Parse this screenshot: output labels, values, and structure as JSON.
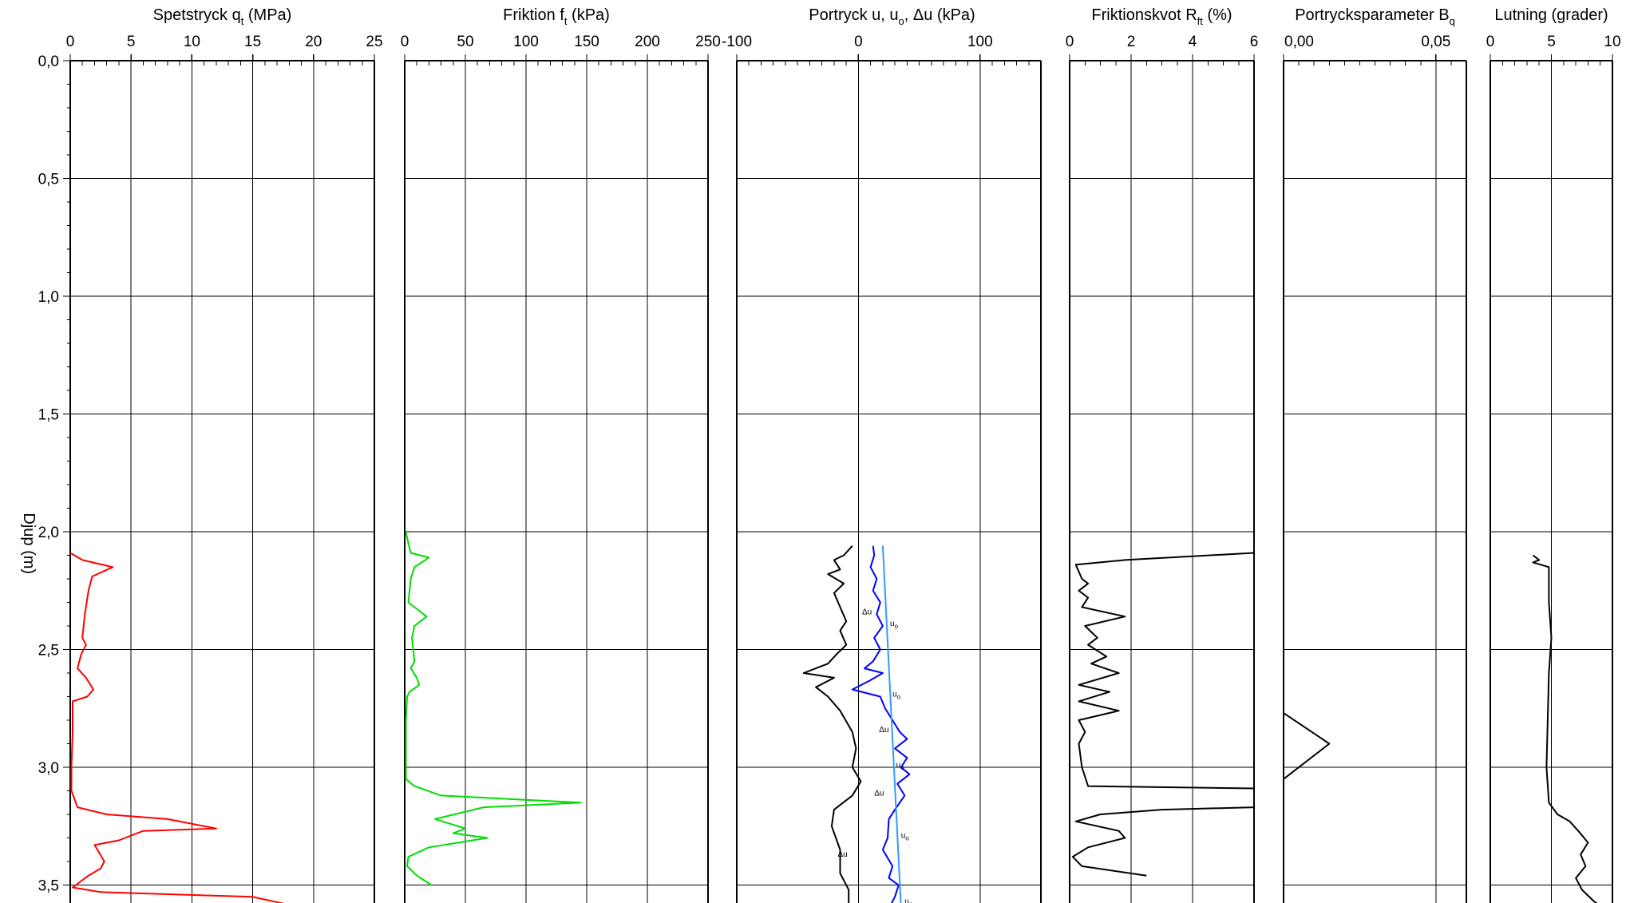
{
  "chart_data": {
    "type": "line",
    "y_axis": {
      "label": "Djup  (m)",
      "ticks": [
        "0,0",
        "0,5",
        "1,0",
        "1,5",
        "2,0",
        "2,5",
        "3,0",
        "3,5"
      ],
      "range": [
        0,
        3.6
      ],
      "inverted": true
    },
    "grid": true,
    "panels": [
      {
        "title": "Spetstryck q",
        "title_sub": "t",
        "title_tail": "  (MPa)",
        "xlim": [
          0,
          25
        ],
        "ticks": [
          0,
          5,
          10,
          15,
          20,
          25
        ],
        "tick_labels": [
          "0",
          "5",
          "10",
          "15",
          "20",
          "25"
        ],
        "minor_step": 1,
        "series": [
          {
            "color": "#ff0000",
            "points": [
              [
                0.0,
                2.09
              ],
              [
                1.0,
                2.12
              ],
              [
                3.5,
                2.15
              ],
              [
                1.8,
                2.19
              ],
              [
                1.5,
                2.25
              ],
              [
                1.2,
                2.35
              ],
              [
                1.0,
                2.45
              ],
              [
                1.3,
                2.48
              ],
              [
                0.9,
                2.52
              ],
              [
                0.6,
                2.58
              ],
              [
                1.3,
                2.62
              ],
              [
                1.9,
                2.67
              ],
              [
                1.4,
                2.7
              ],
              [
                0.2,
                2.72
              ],
              [
                0.2,
                2.85
              ],
              [
                0.1,
                3.0
              ],
              [
                0.1,
                3.1
              ],
              [
                0.6,
                3.17
              ],
              [
                3.0,
                3.2
              ],
              [
                8.0,
                3.22
              ],
              [
                12.0,
                3.26
              ],
              [
                6.0,
                3.27
              ],
              [
                4.0,
                3.31
              ],
              [
                2.0,
                3.33
              ],
              [
                2.8,
                3.4
              ],
              [
                2.5,
                3.43
              ],
              [
                1.5,
                3.46
              ],
              [
                0.2,
                3.51
              ],
              [
                2.5,
                3.53
              ],
              [
                15.0,
                3.55
              ],
              [
                18.5,
                3.59
              ]
            ]
          }
        ]
      },
      {
        "title": "Friktion f",
        "title_sub": "t",
        "title_tail": "  (kPa)",
        "xlim": [
          0,
          250
        ],
        "ticks": [
          0,
          50,
          100,
          150,
          200,
          250
        ],
        "tick_labels": [
          "0",
          "50",
          "100",
          "150",
          "200",
          "250"
        ],
        "minor_step": 10,
        "series": [
          {
            "color": "#00dd00",
            "points": [
              [
                1,
                2.0
              ],
              [
                3,
                2.05
              ],
              [
                5,
                2.09
              ],
              [
                20,
                2.11
              ],
              [
                8,
                2.15
              ],
              [
                5,
                2.2
              ],
              [
                3,
                2.3
              ],
              [
                18,
                2.36
              ],
              [
                8,
                2.4
              ],
              [
                6,
                2.45
              ],
              [
                8,
                2.55
              ],
              [
                5,
                2.58
              ],
              [
                10,
                2.62
              ],
              [
                12,
                2.65
              ],
              [
                4,
                2.68
              ],
              [
                2,
                2.7
              ],
              [
                1,
                2.8
              ],
              [
                1,
                3.05
              ],
              [
                8,
                3.08
              ],
              [
                30,
                3.12
              ],
              [
                145,
                3.15
              ],
              [
                65,
                3.17
              ],
              [
                25,
                3.22
              ],
              [
                50,
                3.26
              ],
              [
                40,
                3.28
              ],
              [
                68,
                3.3
              ],
              [
                20,
                3.34
              ],
              [
                3,
                3.38
              ],
              [
                2,
                3.42
              ],
              [
                10,
                3.46
              ],
              [
                22,
                3.5
              ]
            ]
          }
        ]
      },
      {
        "title": "Portryck u, u",
        "title_sub": "o",
        "title_tail": ", Δu  (kPa)",
        "xlim": [
          -100,
          150
        ],
        "ticks": [
          -100,
          0,
          100
        ],
        "tick_labels": [
          "-100",
          "0",
          "100"
        ],
        "minor_step": 10,
        "annotations": [
          {
            "text": "Δu",
            "x": 3,
            "y": 2.35
          },
          {
            "text": "Δu",
            "x": 17,
            "y": 2.85
          },
          {
            "text": "Δu",
            "x": 13,
            "y": 3.12
          },
          {
            "text": "Δu",
            "x": -17,
            "y": 3.38
          },
          {
            "text": "u",
            "sub": "o",
            "x": 26,
            "y": 2.4
          },
          {
            "text": "u",
            "sub": "o",
            "x": 28,
            "y": 2.7
          },
          {
            "text": "u",
            "sub": "o",
            "x": 31,
            "y": 3.0
          },
          {
            "text": "u",
            "sub": "o",
            "x": 35,
            "y": 3.3
          },
          {
            "text": "u",
            "sub": "o",
            "x": 38,
            "y": 3.58
          }
        ],
        "series": [
          {
            "name": "u",
            "color": "#0000ff",
            "points": [
              [
                12,
                2.06
              ],
              [
                13,
                2.1
              ],
              [
                10,
                2.15
              ],
              [
                15,
                2.2
              ],
              [
                12,
                2.25
              ],
              [
                18,
                2.3
              ],
              [
                15,
                2.35
              ],
              [
                20,
                2.4
              ],
              [
                13,
                2.45
              ],
              [
                18,
                2.5
              ],
              [
                12,
                2.55
              ],
              [
                5,
                2.58
              ],
              [
                20,
                2.6
              ],
              [
                10,
                2.63
              ],
              [
                -5,
                2.67
              ],
              [
                18,
                2.7
              ],
              [
                22,
                2.75
              ],
              [
                28,
                2.8
              ],
              [
                34,
                2.85
              ],
              [
                40,
                2.88
              ],
              [
                30,
                2.92
              ],
              [
                40,
                2.96
              ],
              [
                35,
                3.0
              ],
              [
                42,
                3.03
              ],
              [
                32,
                3.07
              ],
              [
                38,
                3.12
              ],
              [
                30,
                3.18
              ],
              [
                25,
                3.22
              ],
              [
                24,
                3.3
              ],
              [
                20,
                3.35
              ],
              [
                28,
                3.42
              ],
              [
                25,
                3.47
              ],
              [
                33,
                3.5
              ],
              [
                30,
                3.55
              ],
              [
                27,
                3.58
              ]
            ]
          },
          {
            "name": "u",
            "name_sub": "o",
            "color": "#3399ff",
            "points": [
              [
                20,
                2.06
              ],
              [
                35,
                3.59
              ]
            ]
          },
          {
            "name": "Δu",
            "color": "#000000",
            "points": [
              [
                -5,
                2.06
              ],
              [
                -12,
                2.1
              ],
              [
                -20,
                2.12
              ],
              [
                -15,
                2.16
              ],
              [
                -25,
                2.18
              ],
              [
                -12,
                2.22
              ],
              [
                -20,
                2.26
              ],
              [
                -15,
                2.32
              ],
              [
                -10,
                2.38
              ],
              [
                -15,
                2.42
              ],
              [
                -10,
                2.48
              ],
              [
                -18,
                2.52
              ],
              [
                -25,
                2.56
              ],
              [
                -45,
                2.6
              ],
              [
                -20,
                2.62
              ],
              [
                -35,
                2.66
              ],
              [
                -25,
                2.7
              ],
              [
                -15,
                2.76
              ],
              [
                -5,
                2.85
              ],
              [
                -2,
                2.92
              ],
              [
                -5,
                3.0
              ],
              [
                2,
                3.06
              ],
              [
                -5,
                3.12
              ],
              [
                -20,
                3.18
              ],
              [
                -22,
                3.25
              ],
              [
                -15,
                3.35
              ],
              [
                -15,
                3.45
              ],
              [
                -8,
                3.52
              ],
              [
                -8,
                3.58
              ]
            ]
          }
        ]
      },
      {
        "title": "Friktionskvot R",
        "title_sub": "ft",
        "title_tail": "  (%)",
        "xlim": [
          0,
          6
        ],
        "ticks": [
          0,
          2,
          4,
          6
        ],
        "tick_labels": [
          "0",
          "2",
          "4",
          "6"
        ],
        "minor_step": 0.5,
        "series": [
          {
            "color": "#000000",
            "points": [
              [
                6.0,
                2.09
              ],
              [
                1.8,
                2.12
              ],
              [
                0.2,
                2.14
              ],
              [
                0.4,
                2.2
              ],
              [
                0.6,
                2.22
              ],
              [
                0.3,
                2.25
              ],
              [
                0.6,
                2.28
              ],
              [
                0.4,
                2.32
              ],
              [
                1.8,
                2.36
              ],
              [
                0.5,
                2.4
              ],
              [
                0.9,
                2.45
              ],
              [
                0.6,
                2.48
              ],
              [
                1.2,
                2.53
              ],
              [
                0.7,
                2.56
              ],
              [
                1.6,
                2.6
              ],
              [
                0.3,
                2.65
              ],
              [
                1.3,
                2.68
              ],
              [
                0.3,
                2.72
              ],
              [
                1.6,
                2.76
              ],
              [
                0.3,
                2.8
              ],
              [
                0.5,
                2.85
              ],
              [
                0.3,
                2.9
              ],
              [
                0.4,
                3.0
              ],
              [
                0.6,
                3.08
              ],
              [
                6.0,
                3.09
              ],
              [
                6.0,
                3.17
              ],
              [
                3.0,
                3.18
              ],
              [
                1.0,
                3.2
              ],
              [
                0.2,
                3.23
              ],
              [
                1.6,
                3.27
              ],
              [
                1.8,
                3.3
              ],
              [
                0.6,
                3.34
              ],
              [
                0.1,
                3.38
              ],
              [
                0.4,
                3.42
              ],
              [
                2.5,
                3.46
              ]
            ]
          }
        ]
      },
      {
        "title": "Portrycksparameter B",
        "title_sub": "q",
        "title_tail": "",
        "xlim": [
          0,
          0.06
        ],
        "ticks": [
          0,
          0.05
        ],
        "tick_labels": [
          "0,00",
          "0,05"
        ],
        "minor_step": 0.005,
        "series": [
          {
            "color": "#000000",
            "points": [
              [
                0.0,
                2.77
              ],
              [
                0.015,
                2.9
              ],
              [
                0.0,
                3.05
              ]
            ]
          }
        ]
      },
      {
        "title": "Lutning (grader)",
        "title_sub": "",
        "title_tail": "",
        "xlim": [
          0,
          10
        ],
        "ticks": [
          0,
          5,
          10
        ],
        "tick_labels": [
          "0",
          "5",
          "10"
        ],
        "minor_step": 1,
        "series": [
          {
            "color": "#000000",
            "points": [
              [
                3.5,
                2.1
              ],
              [
                4.0,
                2.12
              ],
              [
                3.5,
                2.13
              ],
              [
                4.8,
                2.15
              ],
              [
                4.8,
                2.3
              ],
              [
                5.0,
                2.45
              ],
              [
                4.8,
                2.6
              ],
              [
                4.7,
                2.8
              ],
              [
                4.6,
                3.0
              ],
              [
                4.8,
                3.15
              ],
              [
                5.5,
                3.2
              ],
              [
                6.5,
                3.23
              ],
              [
                7.2,
                3.27
              ],
              [
                8.0,
                3.32
              ],
              [
                7.4,
                3.37
              ],
              [
                7.8,
                3.42
              ],
              [
                7.0,
                3.47
              ],
              [
                7.5,
                3.52
              ],
              [
                8.5,
                3.57
              ],
              [
                9.3,
                3.6
              ]
            ]
          }
        ]
      }
    ]
  }
}
